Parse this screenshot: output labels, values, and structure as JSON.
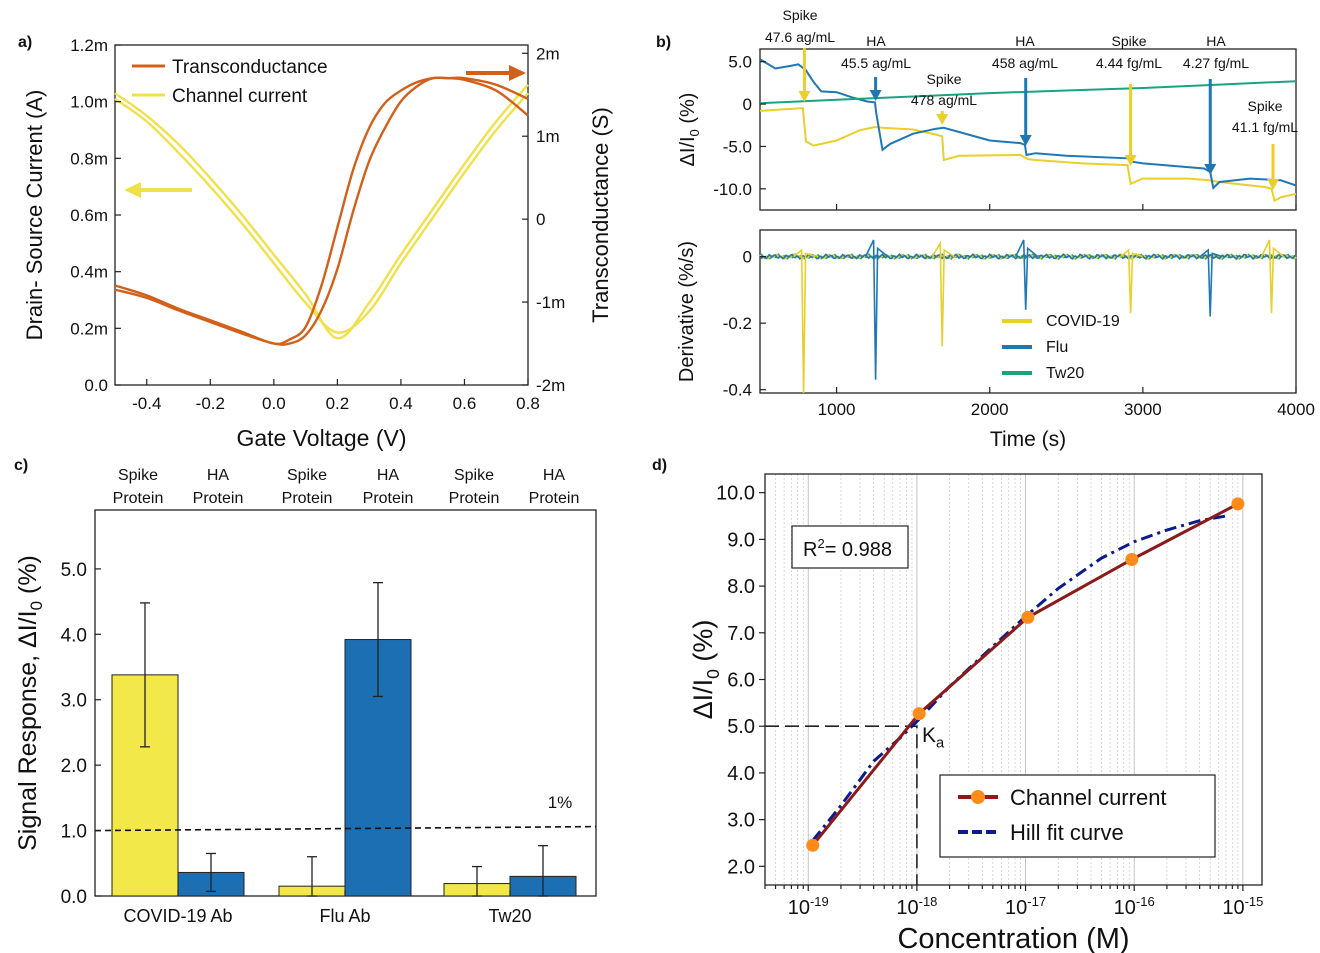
{
  "panel_labels": [
    "a)",
    "b)",
    "c)",
    "d)"
  ],
  "colors": {
    "orange": "#d2601a",
    "yellow": "#f0e14a",
    "yellow_dark": "#e8cf2a",
    "blue": "#1f78b4",
    "green": "#1aa37f",
    "navy": "#0d1b8c",
    "darkred": "#8b1a1a",
    "marker": "#ff8c1a",
    "bar_yellow": "#f2e84a",
    "bar_blue": "#1d6fb4"
  },
  "chart_data": [
    {
      "panel": "a)",
      "type": "line",
      "xlabel": "Gate Voltage (V)",
      "ylabel": "Drain- Source Current (A)",
      "y2label": "Transconductance (S)",
      "xlim": [
        -0.5,
        0.8
      ],
      "ylim": [
        0,
        0.0012
      ],
      "y2lim": [
        -0.002,
        0.0021
      ],
      "xticks": [
        -0.4,
        -0.2,
        0.0,
        0.2,
        0.4,
        0.6,
        0.8
      ],
      "xtick_labels": [
        "-0.4",
        "-0.2",
        "0.0",
        "0.2",
        "0.4",
        "0.6",
        "0.8"
      ],
      "yticks": [
        0,
        0.0002,
        0.0004,
        0.0006,
        0.0008,
        0.001,
        0.0012
      ],
      "ytick_labels": [
        "0.0",
        "0.2m",
        "0.4m",
        "0.6m",
        "0.8m",
        "1.0m",
        "1.2m"
      ],
      "y2ticks": [
        -0.002,
        -0.001,
        0,
        0.001,
        0.002
      ],
      "y2tick_labels": [
        "-2m",
        "-1m",
        "0",
        "1m",
        "2m"
      ],
      "legend": [
        "Transconductance",
        "Channel current"
      ],
      "series": [
        {
          "name": "Channel current",
          "axis": "left",
          "x": [
            -0.5,
            -0.4,
            -0.3,
            -0.2,
            -0.1,
            0.0,
            0.1,
            0.2,
            0.3,
            0.4,
            0.5,
            0.6,
            0.7,
            0.8
          ],
          "y": [
            0.00103,
            0.00095,
            0.00085,
            0.00073,
            0.0006,
            0.00046,
            0.00032,
            0.000165,
            0.00029,
            0.00046,
            0.00062,
            0.00078,
            0.00093,
            0.00106
          ]
        },
        {
          "name": "Channel current",
          "axis": "left",
          "x": [
            -0.5,
            -0.4,
            -0.3,
            -0.2,
            -0.1,
            0.0,
            0.1,
            0.2,
            0.3,
            0.4,
            0.5,
            0.6,
            0.7,
            0.8
          ],
          "y": [
            0.00101,
            0.00093,
            0.00082,
            0.0007,
            0.00057,
            0.00043,
            0.00029,
            0.000185,
            0.00026,
            0.00043,
            0.00059,
            0.00075,
            0.0009,
            0.00103
          ]
        },
        {
          "name": "Transconductance",
          "axis": "right",
          "x": [
            -0.5,
            -0.4,
            -0.3,
            -0.2,
            -0.1,
            0.0,
            0.05,
            0.1,
            0.15,
            0.2,
            0.25,
            0.3,
            0.35,
            0.4,
            0.45,
            0.5,
            0.55,
            0.6,
            0.7,
            0.8
          ],
          "y": [
            -0.0008,
            -0.00092,
            -0.00108,
            -0.00122,
            -0.00136,
            -0.0015,
            -0.00145,
            -0.0013,
            -0.0008,
            -0.0001,
            0.0006,
            0.0011,
            0.0014,
            0.00155,
            0.00165,
            0.0017,
            0.0017,
            0.00168,
            0.00155,
            0.00125
          ]
        },
        {
          "name": "Transconductance",
          "axis": "right",
          "x": [
            -0.5,
            -0.4,
            -0.3,
            -0.2,
            -0.1,
            0.0,
            0.05,
            0.1,
            0.15,
            0.2,
            0.25,
            0.3,
            0.35,
            0.4,
            0.45,
            0.5,
            0.55,
            0.6,
            0.7,
            0.8
          ],
          "y": [
            -0.00085,
            -0.00095,
            -0.0011,
            -0.00124,
            -0.00138,
            -0.0015,
            -0.0015,
            -0.0014,
            -0.0011,
            -0.0006,
            0.0001,
            0.0007,
            0.0011,
            0.00142,
            0.0016,
            0.0017,
            0.0017,
            0.0017,
            0.00162,
            0.00145
          ]
        }
      ]
    },
    {
      "panel": "b)",
      "type": "line",
      "subplot": "top",
      "ylabel": "ΔI/I0 (%)",
      "xlim": [
        500,
        4000
      ],
      "ylim": [
        -12.5,
        6.5
      ],
      "yticks": [
        5,
        0,
        -5,
        -10
      ],
      "ytick_labels": [
        "5.0",
        "0",
        "-5.0",
        "-10.0"
      ],
      "series": [
        {
          "name": "COVID-19",
          "x": [
            500,
            760,
            780,
            800,
            850,
            1000,
            1150,
            1250,
            1300,
            1500,
            1650,
            1690,
            1700,
            1800,
            2200,
            2250,
            2300,
            2600,
            2900,
            2920,
            3000,
            3300,
            3430,
            3500,
            3800,
            3840,
            3860,
            3900,
            4000
          ],
          "y": [
            -0.8,
            -0.5,
            -0.5,
            -4.4,
            -4.9,
            -4.3,
            -3.1,
            -2.7,
            -2.8,
            -3.0,
            -3.6,
            -3.8,
            -6.6,
            -6.1,
            -6.0,
            -6.5,
            -6.6,
            -7.0,
            -7.2,
            -9.4,
            -8.8,
            -8.8,
            -9.0,
            -9.2,
            -9.8,
            -10.0,
            -11.4,
            -11.0,
            -10.6
          ]
        },
        {
          "name": "Flu",
          "x": [
            500,
            600,
            700,
            750,
            800,
            850,
            900,
            1000,
            1100,
            1200,
            1250,
            1260,
            1300,
            1350,
            1500,
            1650,
            1700,
            1800,
            2000,
            2200,
            2230,
            2240,
            2300,
            2500,
            2900,
            2930,
            3000,
            3400,
            3440,
            3460,
            3500,
            3700,
            3900,
            4000
          ],
          "y": [
            5.3,
            4.2,
            4.5,
            4.7,
            4.0,
            2.6,
            1.5,
            1.4,
            0.8,
            0.3,
            0.2,
            -1.2,
            -5.4,
            -4.7,
            -3.5,
            -2.9,
            -2.8,
            -3.3,
            -4.3,
            -4.6,
            -4.8,
            -6.0,
            -5.8,
            -6.1,
            -6.4,
            -6.8,
            -7.0,
            -7.6,
            -8.0,
            -9.9,
            -9.2,
            -8.8,
            -9.0,
            -9.6
          ]
        },
        {
          "name": "Tw20",
          "x": [
            500,
            1000,
            1500,
            2000,
            2500,
            3000,
            3500,
            4000
          ],
          "y": [
            0.1,
            0.5,
            0.9,
            1.3,
            1.6,
            1.9,
            2.3,
            2.7
          ]
        }
      ],
      "annotations": [
        {
          "text": "Spike",
          "text2": "47.6 ag/mL",
          "x": 790,
          "color": "yellow"
        },
        {
          "text": "HA",
          "text2": "45.5 ag/mL",
          "x": 1255,
          "color": "blue"
        },
        {
          "text": "Spike",
          "text2": "478 ag/mL",
          "x": 1690,
          "color": "yellow"
        },
        {
          "text": "HA",
          "text2": "458 ag/mL",
          "x": 2235,
          "color": "blue"
        },
        {
          "text": "Spike",
          "text2": "4.44 fg/mL",
          "x": 2920,
          "color": "yellow"
        },
        {
          "text": "HA",
          "text2": "4.27 fg/mL",
          "x": 3440,
          "color": "blue"
        },
        {
          "text": "Spike",
          "text2": "41.1 fg/mL",
          "x": 3850,
          "color": "yellow"
        }
      ]
    },
    {
      "panel": "b)",
      "type": "line",
      "subplot": "bottom",
      "xlabel": "Time (s)",
      "ylabel": "Derivative (%/s)",
      "xlim": [
        500,
        4000
      ],
      "ylim": [
        -0.41,
        0.08
      ],
      "xticks": [
        1000,
        2000,
        3000,
        4000
      ],
      "xtick_labels": [
        "1000",
        "2000",
        "3000",
        "4000"
      ],
      "yticks": [
        0,
        -0.2,
        -0.4
      ],
      "ytick_labels": [
        "0",
        "-0.2",
        "-0.4"
      ],
      "legend": [
        "COVID-19",
        "Flu",
        "Tw20"
      ],
      "spikes": [
        {
          "series": "COVID-19",
          "x": 785,
          "min": -0.41,
          "max": 0.02
        },
        {
          "series": "Flu",
          "x": 1255,
          "min": -0.37,
          "max": 0.05
        },
        {
          "series": "COVID-19",
          "x": 1690,
          "min": -0.27,
          "max": 0.04
        },
        {
          "series": "Flu",
          "x": 2235,
          "min": -0.16,
          "max": 0.05
        },
        {
          "series": "COVID-19",
          "x": 2920,
          "min": -0.17,
          "max": 0.02
        },
        {
          "series": "Flu",
          "x": 3440,
          "min": -0.18,
          "max": 0.02
        },
        {
          "series": "COVID-19",
          "x": 3840,
          "min": -0.17,
          "max": 0.05
        }
      ]
    },
    {
      "panel": "c)",
      "type": "bar",
      "ylabel": "Signal Response, ΔI/I0 (%)",
      "categories": [
        "COVID-19 Ab",
        "Flu Ab",
        "Tw20"
      ],
      "ylim": [
        0,
        5.9
      ],
      "yticks": [
        0,
        1,
        2,
        3,
        4,
        5
      ],
      "ytick_labels": [
        "0.0",
        "1.0",
        "2.0",
        "3.0",
        "4.0",
        "5.0"
      ],
      "group_labels": [
        [
          "Spike",
          "Protein"
        ],
        [
          "HA",
          "Protein"
        ],
        [
          "Spike",
          "Protein"
        ],
        [
          "HA",
          "Protein"
        ],
        [
          "Spike",
          "Protein"
        ],
        [
          "HA",
          "Protein"
        ]
      ],
      "threshold": {
        "value": 1.0,
        "label": "1%"
      },
      "series": [
        {
          "name": "Spike Protein",
          "values": [
            3.38,
            0.15,
            0.19
          ],
          "errors": [
            1.1,
            0.45,
            0.26
          ]
        },
        {
          "name": "HA Protein",
          "values": [
            0.36,
            3.92,
            0.3
          ],
          "errors": [
            0.29,
            0.87,
            0.47
          ]
        }
      ]
    },
    {
      "panel": "d)",
      "type": "line",
      "xlabel": "Concentration (M)",
      "ylabel": "ΔI/I0 (%)",
      "xscale": "log",
      "xlim": [
        4e-20,
        1.5e-15
      ],
      "ylim": [
        1.6,
        10.4
      ],
      "xticks": [
        1e-19,
        1e-18,
        1e-17,
        1e-16,
        1e-15
      ],
      "xtick_labels": [
        [
          "10",
          "-19"
        ],
        [
          "10",
          "-18"
        ],
        [
          "10",
          "-17"
        ],
        [
          "10",
          "-16"
        ],
        [
          "10",
          "-15"
        ]
      ],
      "yticks": [
        2,
        3,
        4,
        5,
        6,
        7,
        8,
        9,
        10
      ],
      "ytick_labels": [
        "2.0",
        "3.0",
        "4.0",
        "5.0",
        "6.0",
        "7.0",
        "8.0",
        "9.0",
        "10.0"
      ],
      "r2_text": [
        "R",
        "2",
        "= 0.988"
      ],
      "ka_text": [
        "K",
        "a"
      ],
      "ka": {
        "x": 1e-18,
        "y": 5.0
      },
      "legend": [
        "Channel current",
        "Hill fit curve"
      ],
      "series": [
        {
          "name": "Channel current",
          "x": [
            1.1e-19,
            1.05e-18,
            1.05e-17,
            9.5e-17,
            9e-16
          ],
          "y": [
            2.45,
            5.27,
            7.33,
            8.57,
            9.76
          ]
        },
        {
          "name": "Hill fit curve",
          "x": [
            1.1e-19,
            2e-19,
            4e-19,
            7e-19,
            1e-18,
            2e-18,
            4e-18,
            1e-17,
            2e-17,
            5e-17,
            1e-16,
            2e-16,
            4e-16,
            7e-16
          ],
          "y": [
            2.55,
            3.3,
            4.25,
            4.75,
            5.1,
            5.85,
            6.5,
            7.35,
            7.95,
            8.6,
            8.95,
            9.2,
            9.4,
            9.5
          ]
        }
      ]
    }
  ]
}
